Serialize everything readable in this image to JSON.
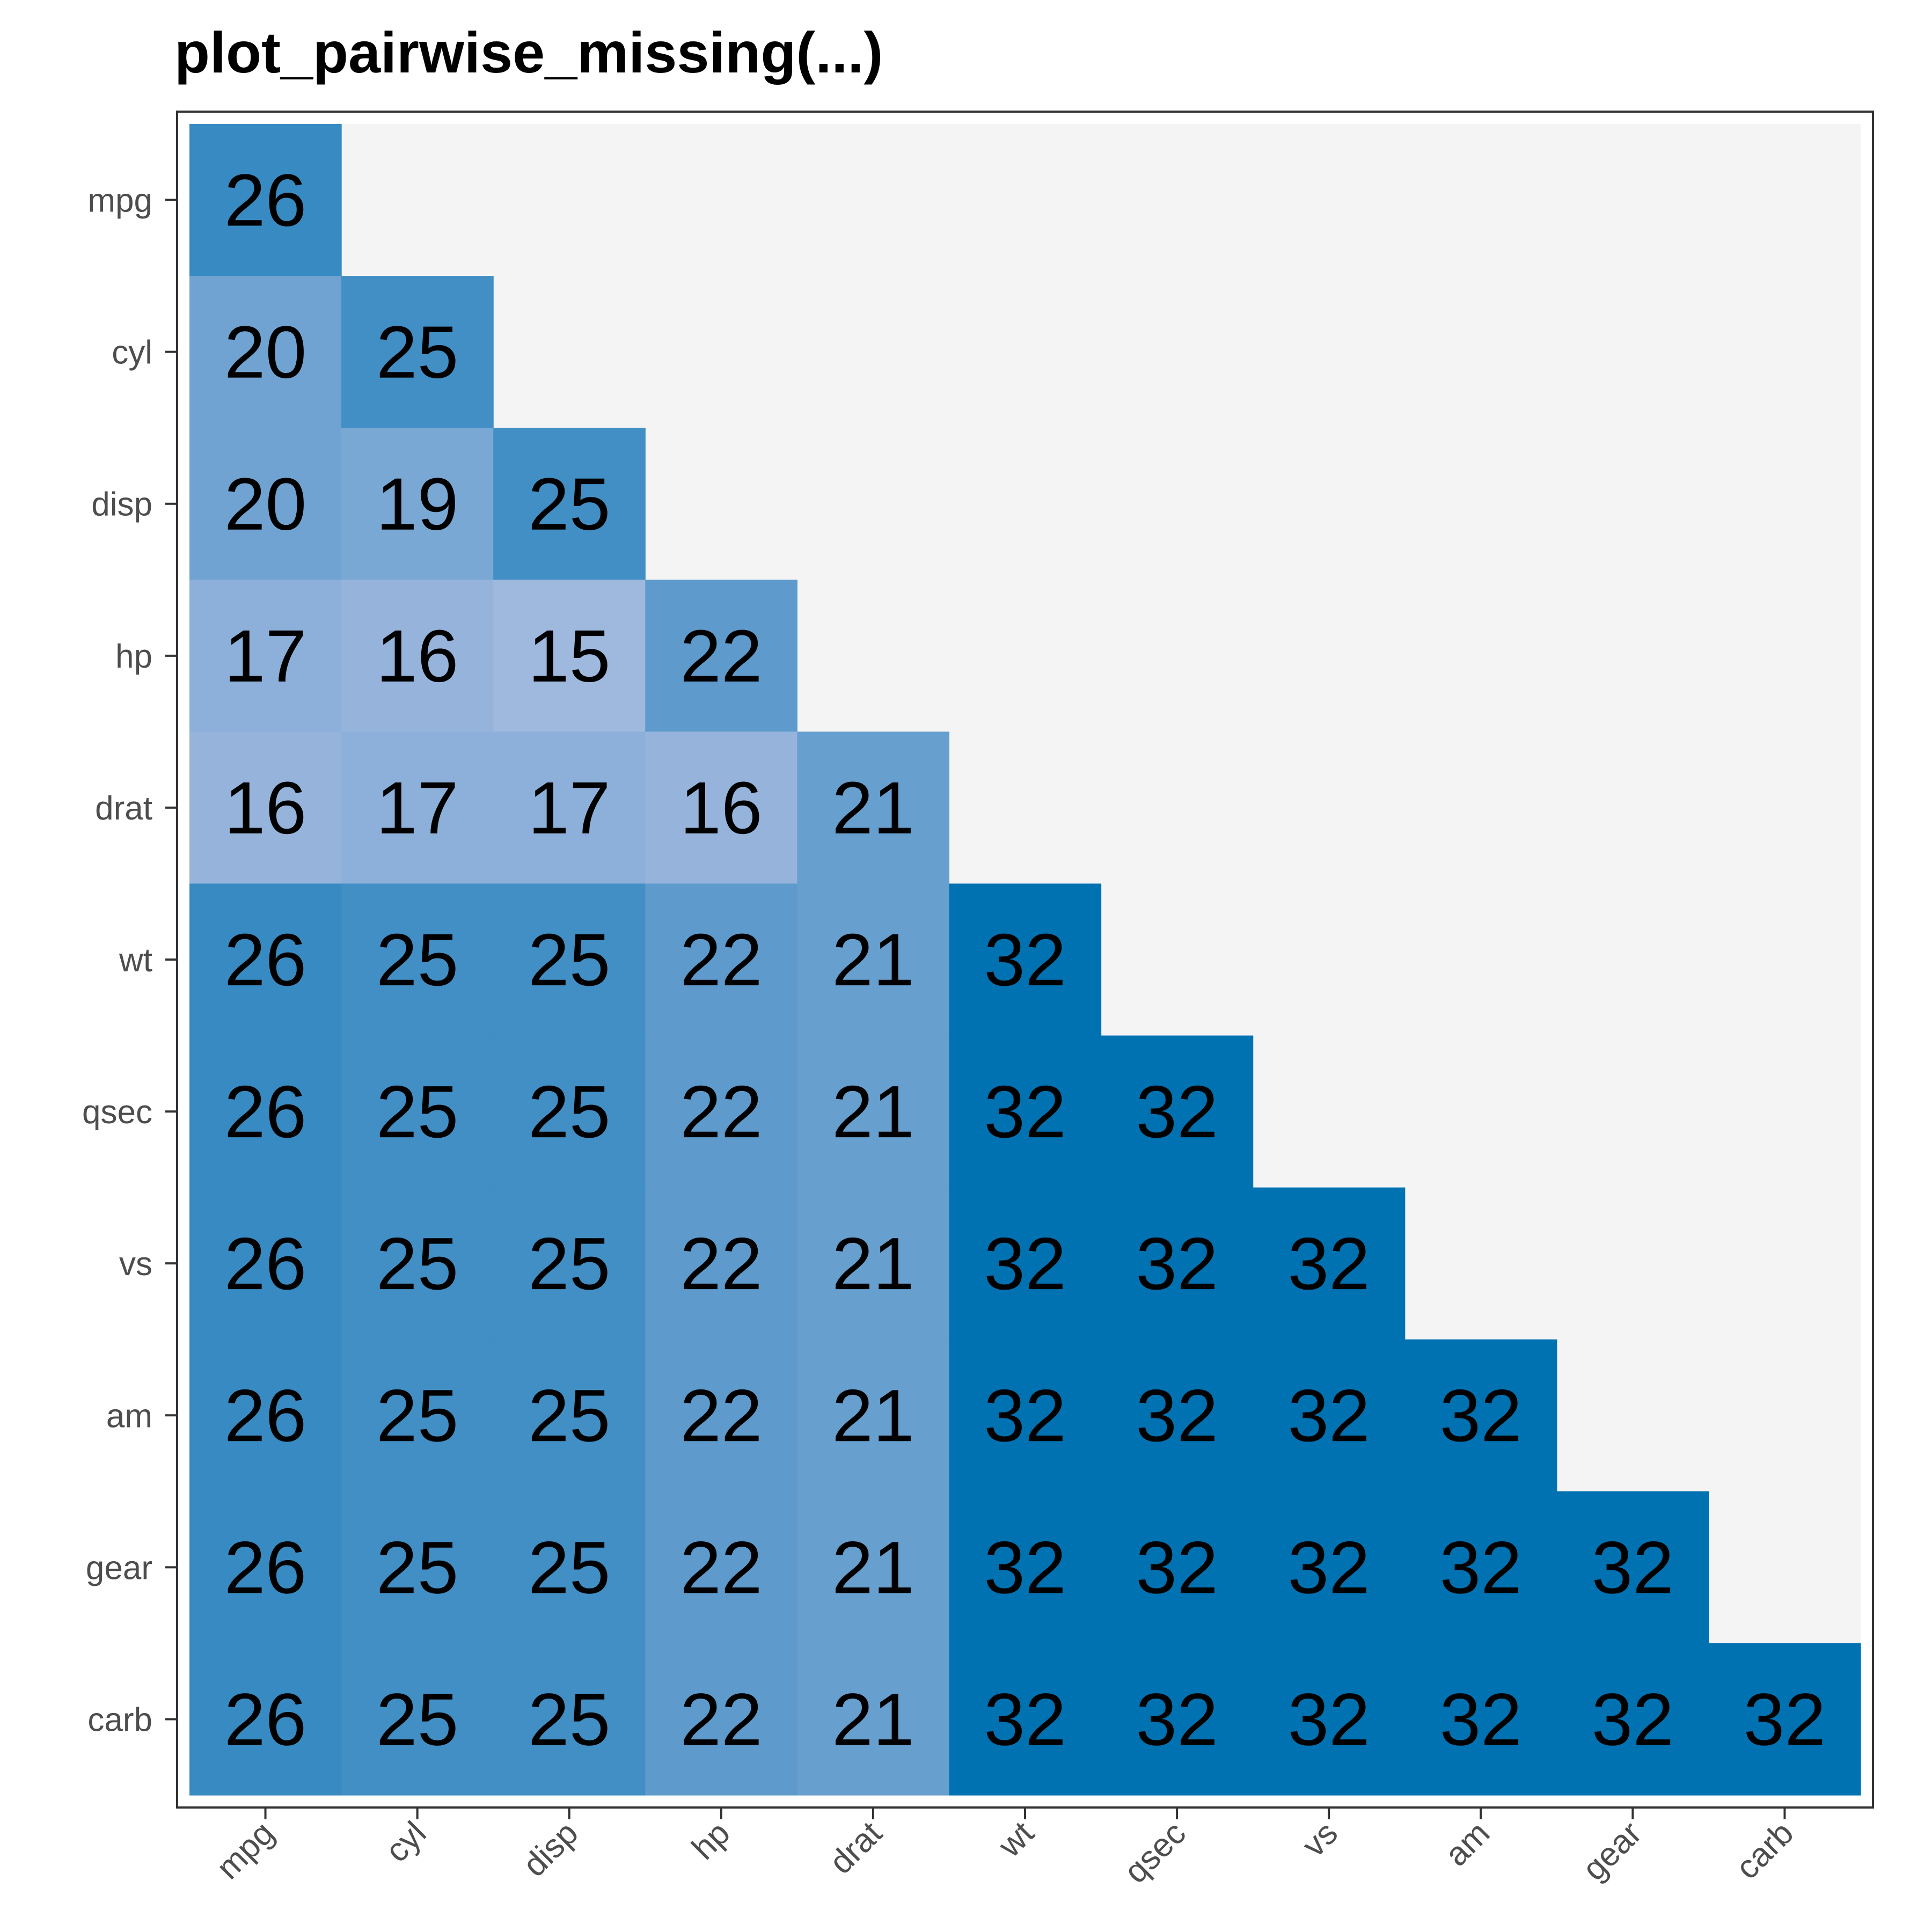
{
  "chart_data": {
    "type": "heatmap",
    "title": "plot_pairwise_missing(...)",
    "xlabel": "",
    "ylabel": "",
    "x_categories": [
      "mpg",
      "cyl",
      "disp",
      "hp",
      "drat",
      "wt",
      "qsec",
      "vs",
      "am",
      "gear",
      "carb"
    ],
    "y_categories": [
      "mpg",
      "cyl",
      "disp",
      "hp",
      "drat",
      "wt",
      "qsec",
      "vs",
      "am",
      "gear",
      "carb"
    ],
    "triangle": "lower",
    "values": [
      [
        26
      ],
      [
        20,
        25
      ],
      [
        20,
        19,
        25
      ],
      [
        17,
        16,
        15,
        22
      ],
      [
        16,
        17,
        17,
        16,
        21
      ],
      [
        26,
        25,
        25,
        22,
        21,
        32
      ],
      [
        26,
        25,
        25,
        22,
        21,
        32,
        32
      ],
      [
        26,
        25,
        25,
        22,
        21,
        32,
        32,
        32
      ],
      [
        26,
        25,
        25,
        22,
        21,
        32,
        32,
        32,
        32
      ],
      [
        26,
        25,
        25,
        22,
        21,
        32,
        32,
        32,
        32,
        32
      ],
      [
        26,
        25,
        25,
        22,
        21,
        32,
        32,
        32,
        32,
        32,
        32
      ]
    ],
    "value_range": [
      15,
      32
    ],
    "colors": {
      "low": "#9fb8de",
      "high": "#0072b2",
      "panel_background": "#f4f4f5",
      "panel_border": "#333333"
    },
    "grid": false,
    "legend": "none"
  }
}
